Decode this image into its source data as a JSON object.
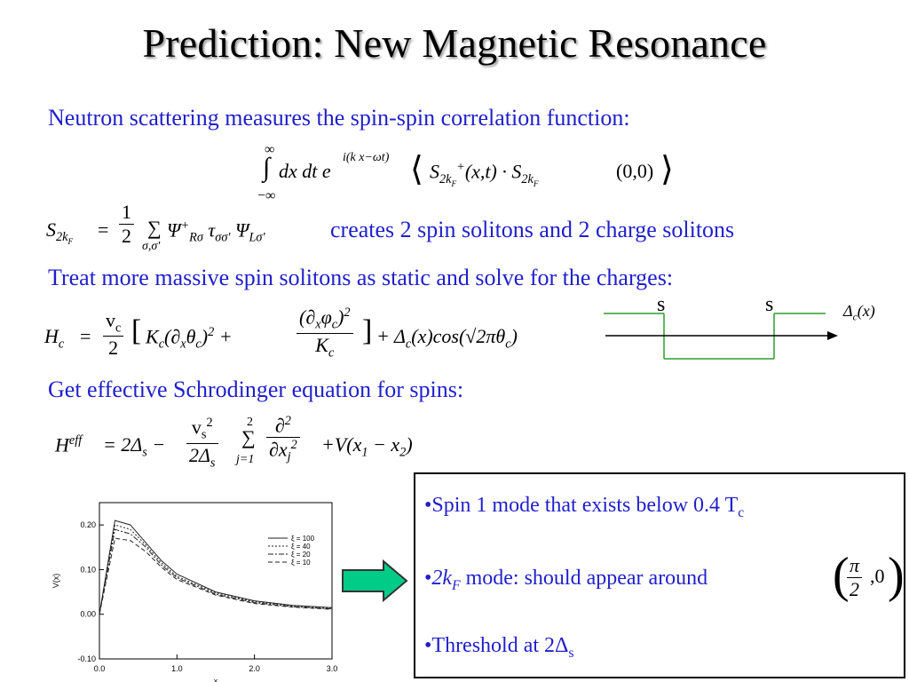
{
  "slide": {
    "title": "Prediction: New Magnetic Resonance",
    "line1": "Neutron scattering measures the spin-spin correlation function:",
    "line2_text": "creates 2 spin solitons and 2 charge solitons",
    "line3": "Treat more massive spin solitons as static and solve for the charges:",
    "line4": "Get effective Schrodinger equation for spins:"
  },
  "formula": {
    "infinity_upper": "∞",
    "infinity_lower": "−∞",
    "integrand": "dx dt e",
    "exponent": "i(k x−ωt)",
    "correlator_end": "(0,0)",
    "half_num": "1",
    "half_den": "2",
    "sum_index": "σ,σ'",
    "vc": "v",
    "vc_sub": "c",
    "two": "2",
    "Kc": "K",
    "Kc_sub": "c",
    "vs": "v",
    "vs_sub": "s",
    "sum_top": "2",
    "sum_bottom": "j=1"
  },
  "diagram": {
    "label_s1": "s",
    "label_s2": "s",
    "label_delta": "Δ",
    "label_delta_sub": "c",
    "label_delta_arg": "(x)"
  },
  "box": {
    "bullet1_pre": "•Spin 1 mode that exists below 0.4 T",
    "bullet1_sub": "c",
    "bullet2_pre": "•",
    "bullet2_k": "2k",
    "bullet2_ksub": "F",
    "bullet2_text": " mode: should appear around",
    "bullet2_pi": "π",
    "bullet2_two": "2",
    "bullet2_zero": ",0",
    "bullet3_pre": "•Threshold at 2Δ",
    "bullet3_sub": "s"
  },
  "chart_data": {
    "type": "line",
    "x": [
      0.0,
      0.2,
      0.4,
      0.6,
      0.8,
      1.0,
      1.5,
      2.0,
      2.5,
      3.0
    ],
    "series": [
      {
        "name": "ξ = 100",
        "values": [
          0.0,
          0.21,
          0.2,
          0.16,
          0.12,
          0.09,
          0.05,
          0.03,
          0.02,
          0.015
        ]
      },
      {
        "name": "ξ = 40",
        "values": [
          0.0,
          0.2,
          0.19,
          0.155,
          0.115,
          0.085,
          0.048,
          0.028,
          0.019,
          0.014
        ]
      },
      {
        "name": "ξ = 20",
        "values": [
          0.0,
          0.19,
          0.18,
          0.15,
          0.11,
          0.082,
          0.045,
          0.026,
          0.017,
          0.012
        ]
      },
      {
        "name": "ξ = 10",
        "values": [
          0.0,
          0.17,
          0.165,
          0.14,
          0.105,
          0.078,
          0.043,
          0.024,
          0.016,
          0.011
        ]
      }
    ],
    "xlabel": "x",
    "ylabel": "V(x)",
    "xlim": [
      0.0,
      3.0
    ],
    "ylim": [
      -0.1,
      0.25
    ],
    "xticks": [
      "0.0",
      "1.0",
      "2.0",
      "3.0"
    ],
    "yticks": [
      "-0.10",
      "0.00",
      "0.10",
      "0.20"
    ],
    "legend": "right"
  },
  "colors": {
    "text_blue": "#1f1fcc",
    "arrow_fill": "#00cc88",
    "arrow_stroke": "#333333",
    "diagram_green": "#2aa02a"
  }
}
